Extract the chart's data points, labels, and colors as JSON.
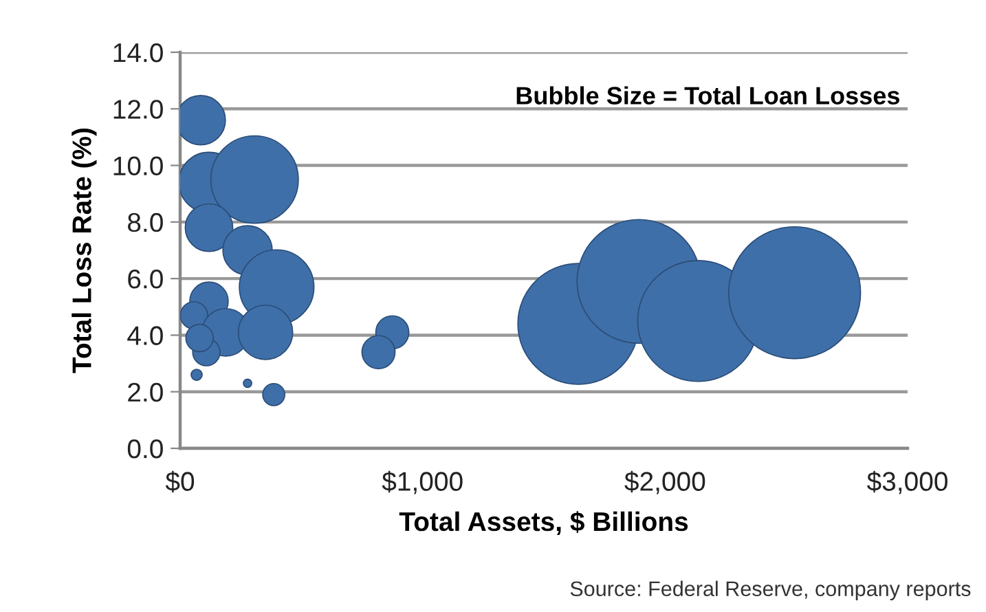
{
  "chart_data": {
    "type": "bubble",
    "xlabel": "Total Assets, $ Billions",
    "ylabel": "Total Loss Rate (%)",
    "annotations": [
      "Bubble Size = Total Loan Losses",
      "Source: Federal Reserve, company reports"
    ],
    "x": [
      85,
      119,
      307,
      119,
      278,
      398,
      119,
      57,
      188,
      352,
      108,
      80,
      68,
      278,
      386,
      875,
      818,
      1642,
      1892,
      2136,
      2534
    ],
    "values": [
      11.6,
      9.4,
      9.5,
      7.8,
      7.0,
      5.7,
      5.2,
      4.7,
      4.1,
      4.1,
      3.4,
      3.9,
      2.6,
      2.3,
      1.9,
      4.1,
      3.4,
      4.4,
      5.9,
      4.5,
      5.5
    ],
    "sizes": [
      0.14,
      0.21,
      0.44,
      0.13,
      0.14,
      0.32,
      0.085,
      0.043,
      0.13,
      0.17,
      0.043,
      0.043,
      0.007,
      0.004,
      0.028,
      0.063,
      0.063,
      0.84,
      0.88,
      0.84,
      1
    ],
    "color": "#3f6fa8",
    "xlim": [
      0,
      3000
    ],
    "ylim": [
      0,
      14
    ],
    "xticks": [
      {
        "value": 0,
        "label": "$0"
      },
      {
        "value": 1000,
        "label": "$1,000"
      },
      {
        "value": 2000,
        "label": "$2,000"
      },
      {
        "value": 3000,
        "label": "$3,000"
      }
    ],
    "yticks": [
      {
        "value": 0,
        "label": "0.0"
      },
      {
        "value": 2,
        "label": "2.0"
      },
      {
        "value": 4,
        "label": "4.0"
      },
      {
        "value": 6,
        "label": "6.0"
      },
      {
        "value": 8,
        "label": "8.0"
      },
      {
        "value": 10,
        "label": "10.0"
      },
      {
        "value": 12,
        "label": "12.0"
      },
      {
        "value": 14,
        "label": "14.0"
      }
    ],
    "grid": "y",
    "legend": false
  }
}
